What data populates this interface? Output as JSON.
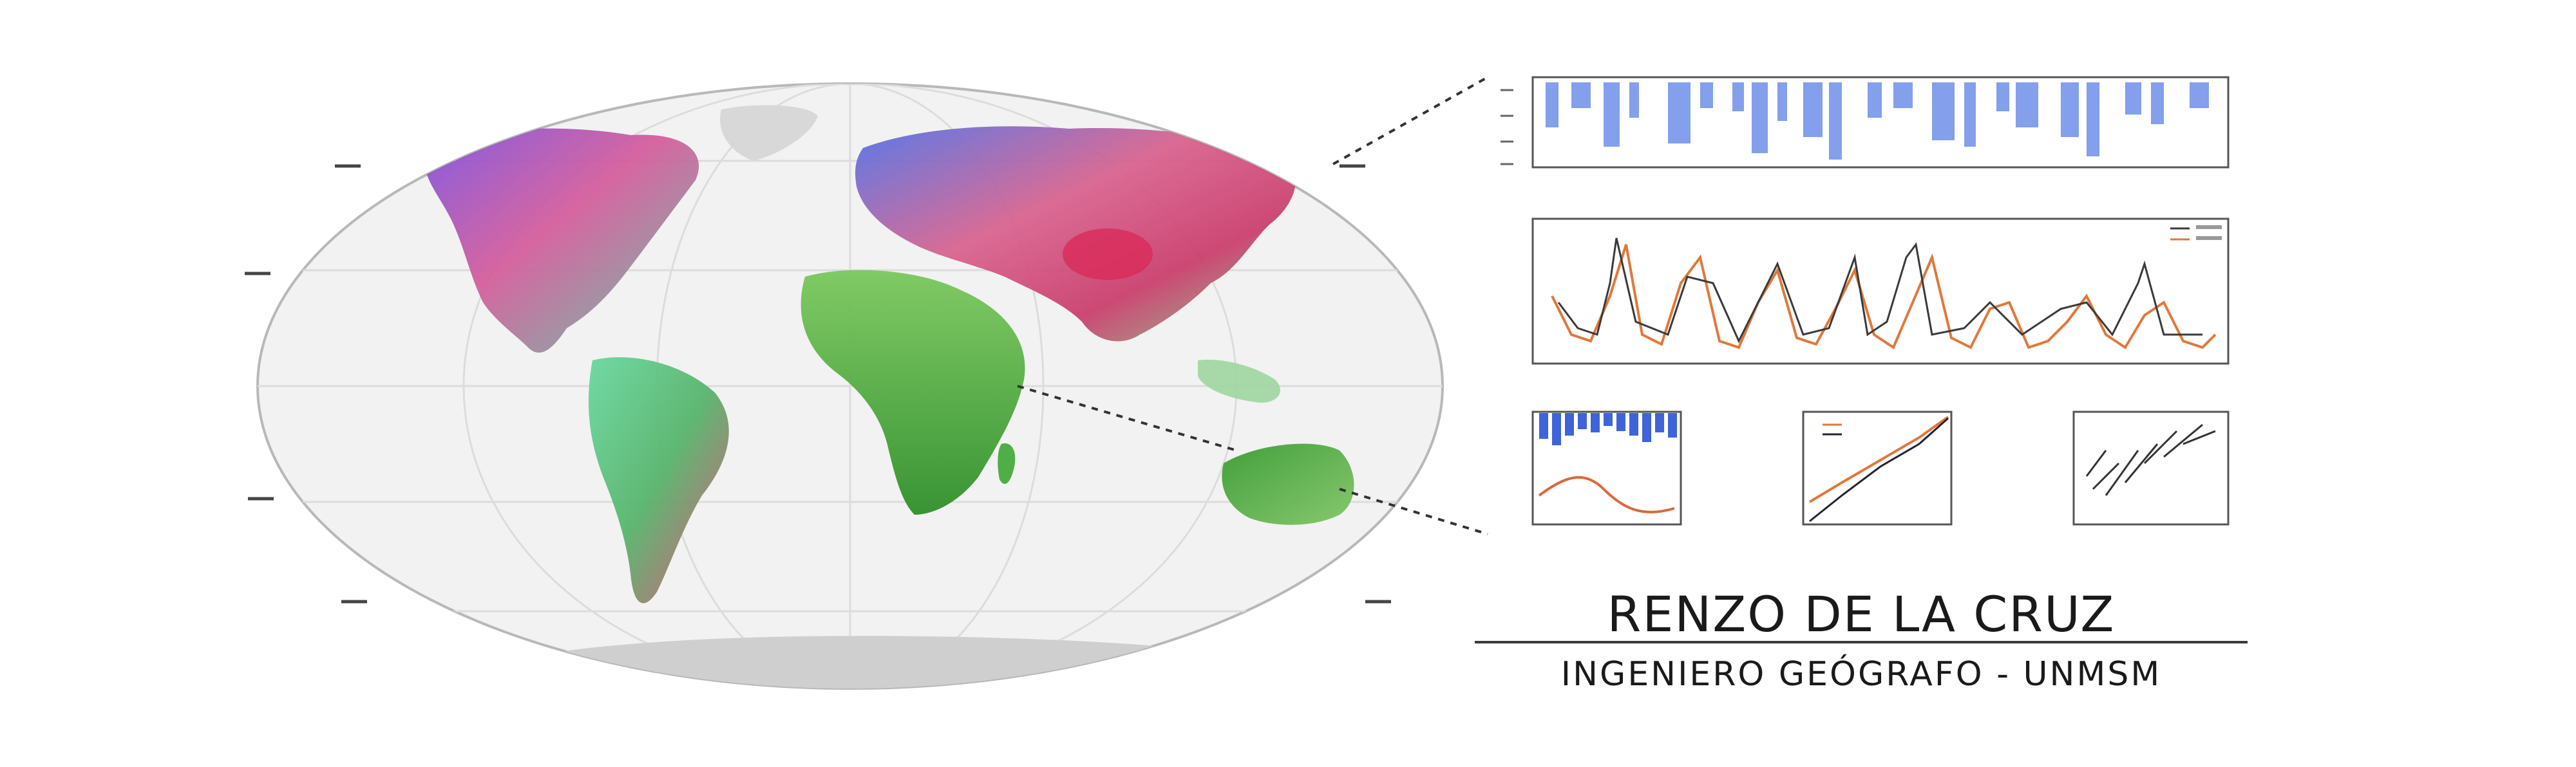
{
  "branding": {
    "name": "RENZO DE LA CRUZ",
    "subtitle": "INGENIERO GEÓGRAFO - UNMSM"
  },
  "map": {
    "ocean_color": "#f2f2f2",
    "graticule_color": "#dcdcdc",
    "outline_color": "#b8b8b8",
    "continents": [
      {
        "name": "North America",
        "colors": [
          "#6a5be0",
          "#d4508c",
          "#6fb0c8"
        ]
      },
      {
        "name": "South America",
        "colors": [
          "#6ccf94",
          "#e0506f",
          "#5aa064"
        ]
      },
      {
        "name": "Europe-Asia",
        "colors": [
          "#4f78e6",
          "#d8608c",
          "#7ac38a"
        ]
      },
      {
        "name": "Africa",
        "colors": [
          "#3fa83c",
          "#7ec86a",
          "#2f8f2a"
        ]
      },
      {
        "name": "Australia",
        "colors": [
          "#3d9f35",
          "#79c361"
        ]
      }
    ]
  },
  "charts": {
    "bar_color": "#6f8fe8",
    "line_color_1": "#e0783a",
    "line_color_2": "#3a3a3a",
    "frame_color": "#555555"
  }
}
